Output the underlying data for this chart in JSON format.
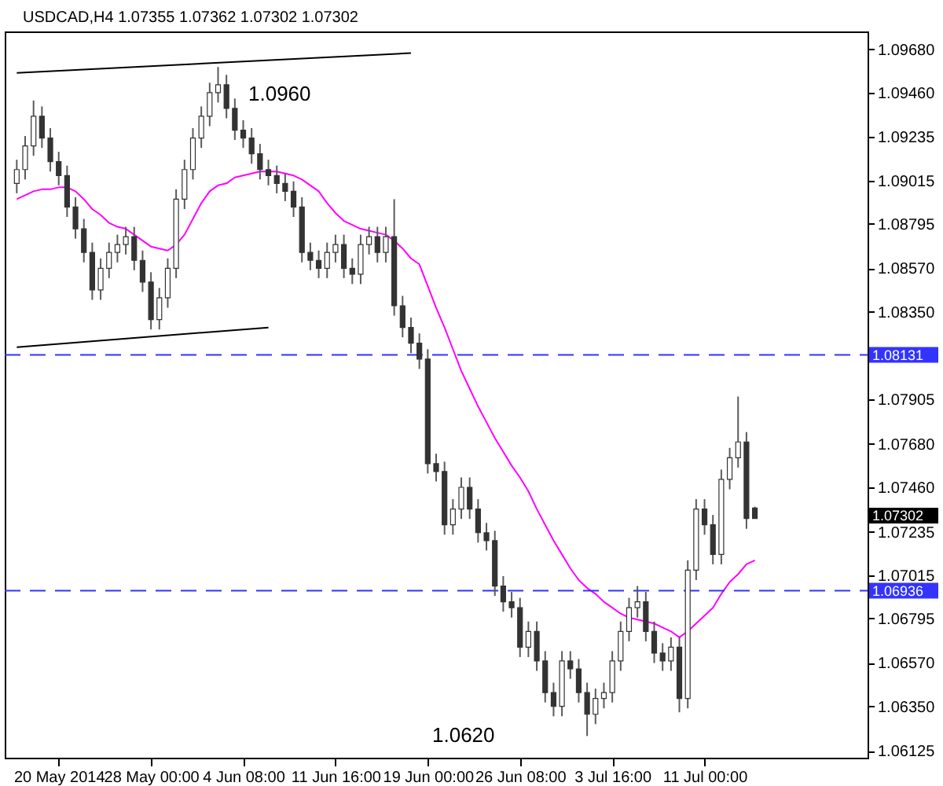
{
  "chart_data": {
    "type": "candlestick",
    "title": "USDCAD,H4  1.07355 1.07362 1.07302 1.07302",
    "categories": [
      null,
      null,
      null,
      null,
      null,
      "20 May 2014",
      null,
      null,
      null,
      null,
      null,
      null,
      null,
      null,
      null,
      null,
      "28 May 00:00",
      null,
      null,
      null,
      null,
      null,
      null,
      null,
      null,
      null,
      null,
      "4 Jun 08:00",
      null,
      null,
      null,
      null,
      null,
      null,
      null,
      null,
      null,
      null,
      "11 Jun 16:00",
      null,
      null,
      null,
      null,
      null,
      null,
      null,
      null,
      null,
      null,
      "19 Jun 00:00",
      null,
      null,
      null,
      null,
      null,
      null,
      null,
      null,
      null,
      null,
      "26 Jun 08:00",
      null,
      null,
      null,
      null,
      null,
      null,
      null,
      null,
      null,
      null,
      "3 Jul 16:00",
      null,
      null,
      null,
      null,
      null,
      null,
      null,
      null,
      null,
      null,
      "11 Jul 00:00",
      null,
      null,
      null,
      null,
      null,
      null
    ],
    "ohlc": [
      [
        1.09,
        1.0912,
        1.0895,
        1.0907
      ],
      [
        1.0907,
        1.0924,
        1.0902,
        1.0919
      ],
      [
        1.0919,
        1.0942,
        1.0914,
        1.0934
      ],
      [
        1.0934,
        1.0939,
        1.0918,
        1.0923
      ],
      [
        1.0923,
        1.0928,
        1.0906,
        1.0911
      ],
      [
        1.0911,
        1.0916,
        1.0899,
        1.0904
      ],
      [
        1.0904,
        1.0909,
        1.0883,
        1.0888
      ],
      [
        1.0888,
        1.0893,
        1.0872,
        1.0877
      ],
      [
        1.0877,
        1.0882,
        1.086,
        1.0865
      ],
      [
        1.0865,
        1.087,
        1.0841,
        1.0846
      ],
      [
        1.0846,
        1.0862,
        1.0841,
        1.0857
      ],
      [
        1.0857,
        1.087,
        1.0852,
        1.0865
      ],
      [
        1.0865,
        1.0874,
        1.086,
        1.0869
      ],
      [
        1.0869,
        1.0878,
        1.0864,
        1.0873
      ],
      [
        1.0873,
        1.0878,
        1.0856,
        1.0861
      ],
      [
        1.0861,
        1.0866,
        1.0845,
        1.085
      ],
      [
        1.085,
        1.0855,
        1.0826,
        1.0831
      ],
      [
        1.0831,
        1.0847,
        1.0826,
        1.0842
      ],
      [
        1.0842,
        1.0862,
        1.0837,
        1.0857
      ],
      [
        1.0857,
        1.0897,
        1.0852,
        1.0892
      ],
      [
        1.0892,
        1.0912,
        1.0887,
        1.0907
      ],
      [
        1.0907,
        1.0928,
        1.0902,
        1.0923
      ],
      [
        1.0923,
        1.0939,
        1.0918,
        1.0934
      ],
      [
        1.0934,
        1.0951,
        1.0929,
        1.0946
      ],
      [
        1.0946,
        1.0959,
        1.0941,
        1.095
      ],
      [
        1.095,
        1.0955,
        1.0933,
        1.0938
      ],
      [
        1.0938,
        1.0943,
        1.0922,
        1.0927
      ],
      [
        1.0927,
        1.0932,
        1.0918,
        1.0923
      ],
      [
        1.0923,
        1.0928,
        1.091,
        1.0915
      ],
      [
        1.0915,
        1.092,
        1.0902,
        1.0907
      ],
      [
        1.0907,
        1.0912,
        1.0899,
        1.0904
      ],
      [
        1.0904,
        1.0909,
        1.0895,
        1.09
      ],
      [
        1.09,
        1.0905,
        1.0891,
        1.0896
      ],
      [
        1.0896,
        1.0901,
        1.0883,
        1.0888
      ],
      [
        1.0888,
        1.0893,
        1.086,
        1.0865
      ],
      [
        1.0865,
        1.087,
        1.0856,
        1.0861
      ],
      [
        1.0861,
        1.0866,
        1.0852,
        1.0857
      ],
      [
        1.0857,
        1.087,
        1.0852,
        1.0865
      ],
      [
        1.0865,
        1.0874,
        1.086,
        1.0869
      ],
      [
        1.0869,
        1.0874,
        1.0852,
        1.0857
      ],
      [
        1.0857,
        1.0862,
        1.0849,
        1.0854
      ],
      [
        1.0854,
        1.0874,
        1.0849,
        1.0869
      ],
      [
        1.0869,
        1.0878,
        1.0864,
        1.0873
      ],
      [
        1.0873,
        1.0878,
        1.086,
        1.0865
      ],
      [
        1.0865,
        1.0878,
        1.086,
        1.0873
      ],
      [
        1.0873,
        1.0892,
        1.0833,
        1.0838
      ],
      [
        1.0838,
        1.0843,
        1.0822,
        1.0827
      ],
      [
        1.0827,
        1.0832,
        1.0814,
        1.0819
      ],
      [
        1.0819,
        1.0824,
        1.0806,
        1.0811
      ],
      [
        1.0811,
        1.0816,
        1.0753,
        1.0758
      ],
      [
        1.0758,
        1.0763,
        1.0749,
        1.0754
      ],
      [
        1.0754,
        1.0759,
        1.0722,
        1.0727
      ],
      [
        1.0727,
        1.074,
        1.0722,
        1.0735
      ],
      [
        1.0735,
        1.0751,
        1.073,
        1.0746
      ],
      [
        1.0746,
        1.0751,
        1.073,
        1.0735
      ],
      [
        1.0735,
        1.074,
        1.0718,
        1.0723
      ],
      [
        1.0723,
        1.0728,
        1.0714,
        1.0719
      ],
      [
        1.0719,
        1.0724,
        1.0691,
        1.0696
      ],
      [
        1.0696,
        1.0701,
        1.0683,
        1.0688
      ],
      [
        1.0688,
        1.0693,
        1.068,
        1.0685
      ],
      [
        1.0685,
        1.069,
        1.066,
        1.0665
      ],
      [
        1.0665,
        1.0678,
        1.066,
        1.0673
      ],
      [
        1.0673,
        1.0678,
        1.0653,
        1.0658
      ],
      [
        1.0658,
        1.0663,
        1.0637,
        1.0642
      ],
      [
        1.0642,
        1.0647,
        1.063,
        1.0635
      ],
      [
        1.0635,
        1.0663,
        1.063,
        1.0658
      ],
      [
        1.0658,
        1.0663,
        1.0649,
        1.0654
      ],
      [
        1.0654,
        1.0659,
        1.0637,
        1.0642
      ],
      [
        1.0642,
        1.0647,
        1.062,
        1.0631
      ],
      [
        1.0631,
        1.0644,
        1.0626,
        1.0639
      ],
      [
        1.0639,
        1.0647,
        1.0634,
        1.0642
      ],
      [
        1.0642,
        1.0663,
        1.0637,
        1.0658
      ],
      [
        1.0658,
        1.0678,
        1.0653,
        1.0673
      ],
      [
        1.0673,
        1.069,
        1.0668,
        1.0685
      ],
      [
        1.0685,
        1.0696,
        1.068,
        1.0688
      ],
      [
        1.0688,
        1.0693,
        1.0668,
        1.0673
      ],
      [
        1.0673,
        1.0678,
        1.0657,
        1.0662
      ],
      [
        1.0662,
        1.0667,
        1.0653,
        1.0658
      ],
      [
        1.0658,
        1.067,
        1.0653,
        1.0665
      ],
      [
        1.0665,
        1.067,
        1.0632,
        1.0639
      ],
      [
        1.0639,
        1.0709,
        1.0634,
        1.0704
      ],
      [
        1.0704,
        1.074,
        1.0699,
        1.0735
      ],
      [
        1.0735,
        1.074,
        1.0722,
        1.0727
      ],
      [
        1.0727,
        1.0732,
        1.0707,
        1.0712
      ],
      [
        1.0712,
        1.0755,
        1.0707,
        1.075
      ],
      [
        1.075,
        1.0766,
        1.0745,
        1.0761
      ],
      [
        1.0761,
        1.0792,
        1.0756,
        1.0769
      ],
      [
        1.0769,
        1.0774,
        1.0725,
        1.07302
      ],
      [
        1.07355,
        1.07362,
        1.07302,
        1.07302
      ]
    ],
    "series": [
      {
        "type": "line",
        "color": "#ff00ff",
        "values": [
          1.0892,
          1.0894,
          1.0896,
          1.0897,
          1.0897,
          1.0898,
          1.0898,
          1.0896,
          1.0892,
          1.0887,
          1.0884,
          1.088,
          1.0878,
          1.0877,
          1.0874,
          1.0871,
          1.0868,
          1.0867,
          1.0866,
          1.0869,
          1.0874,
          1.0882,
          1.089,
          1.0896,
          1.0899,
          1.09,
          1.0903,
          1.0904,
          1.0905,
          1.0906,
          1.0906,
          1.0906,
          1.0905,
          1.0904,
          1.0902,
          1.0899,
          1.0896,
          1.089,
          1.0885,
          1.0881,
          1.0879,
          1.0877,
          1.0876,
          1.0875,
          1.0874,
          1.0871,
          1.0867,
          1.0862,
          1.0859,
          1.0848,
          1.0837,
          1.0827,
          1.0816,
          1.0805,
          1.0796,
          1.0787,
          1.0779,
          1.0771,
          1.0764,
          1.0757,
          1.0751,
          1.0744,
          1.0735,
          1.0727,
          1.0719,
          1.0712,
          1.0705,
          1.0699,
          1.0695,
          1.0692,
          1.0688,
          1.0685,
          1.0682,
          1.068,
          1.0679,
          1.0678,
          1.0677,
          1.0675,
          1.0673,
          1.067,
          1.0673,
          1.0677,
          1.0681,
          1.0685,
          1.0692,
          1.0698,
          1.0702,
          1.0707,
          1.0709
        ]
      },
      {
        "type": "line",
        "color": "#000000",
        "values": [
          1.0956,
          null,
          null,
          null,
          null,
          null,
          null,
          null,
          null,
          null,
          null,
          null,
          null,
          null,
          null,
          null,
          null,
          null,
          null,
          null,
          null,
          null,
          null,
          null,
          null,
          null,
          null,
          null,
          null,
          null,
          null,
          null,
          null,
          null,
          null,
          null,
          null,
          null,
          null,
          null,
          null,
          null,
          null,
          null,
          null,
          null,
          null,
          1.0966,
          null,
          null,
          null,
          null,
          null,
          null,
          null,
          null,
          null,
          null,
          null,
          null,
          null,
          null,
          null,
          null,
          null,
          null,
          null,
          null,
          null,
          null,
          null,
          null,
          null,
          null,
          null,
          null,
          null,
          null,
          null,
          null,
          null,
          null,
          null,
          null,
          null,
          null,
          null,
          null,
          null
        ]
      },
      {
        "type": "line",
        "color": "#000000",
        "values": [
          1.0817,
          null,
          null,
          null,
          null,
          null,
          null,
          null,
          null,
          null,
          null,
          null,
          null,
          null,
          null,
          null,
          null,
          null,
          null,
          null,
          null,
          null,
          null,
          null,
          null,
          null,
          null,
          null,
          null,
          null,
          1.0827,
          null,
          null,
          null,
          null,
          null,
          null,
          null,
          null,
          null,
          null,
          null,
          null,
          null,
          null,
          null,
          null,
          null,
          null,
          null,
          null,
          null,
          null,
          null,
          null,
          null,
          null,
          null,
          null,
          null,
          null,
          null,
          null,
          null,
          null,
          null,
          null,
          null,
          null,
          null,
          null,
          null,
          null,
          null,
          null,
          null,
          null,
          null,
          null,
          null,
          null,
          null,
          null,
          null,
          null,
          null,
          null,
          null,
          null
        ]
      }
    ],
    "ylim": [
      1.0609,
      1.0977
    ],
    "yticks": [
      {
        "value": 1.0968,
        "label": "1.09680"
      },
      {
        "value": 1.0946,
        "label": "1.09460"
      },
      {
        "value": 1.09235,
        "label": "1.09235"
      },
      {
        "value": 1.09015,
        "label": "1.09015"
      },
      {
        "value": 1.08795,
        "label": "1.08795"
      },
      {
        "value": 1.0857,
        "label": "1.08570"
      },
      {
        "value": 1.0835,
        "label": "1.08350"
      },
      {
        "value": 1.07905,
        "label": "1.07905"
      },
      {
        "value": 1.0768,
        "label": "1.07680"
      },
      {
        "value": 1.0746,
        "label": "1.07460"
      },
      {
        "value": 1.07235,
        "label": "1.07235"
      },
      {
        "value": 1.07015,
        "label": "1.07015"
      },
      {
        "value": 1.06795,
        "label": "1.06795"
      },
      {
        "value": 1.0657,
        "label": "1.06570"
      },
      {
        "value": 1.0635,
        "label": "1.06350"
      },
      {
        "value": 1.06125,
        "label": "1.06125"
      }
    ],
    "ref_lines": [
      {
        "axis": "y",
        "value": 1.08131,
        "label": "1.08131",
        "color": "#3333ff",
        "line_style": "dashed"
      },
      {
        "axis": "y",
        "value": 1.06936,
        "label": "1.06936",
        "color": "#3333ff",
        "line_style": "dashed"
      }
    ],
    "annotations": [
      "1.0960",
      "1.0620",
      "1.07302"
    ]
  }
}
